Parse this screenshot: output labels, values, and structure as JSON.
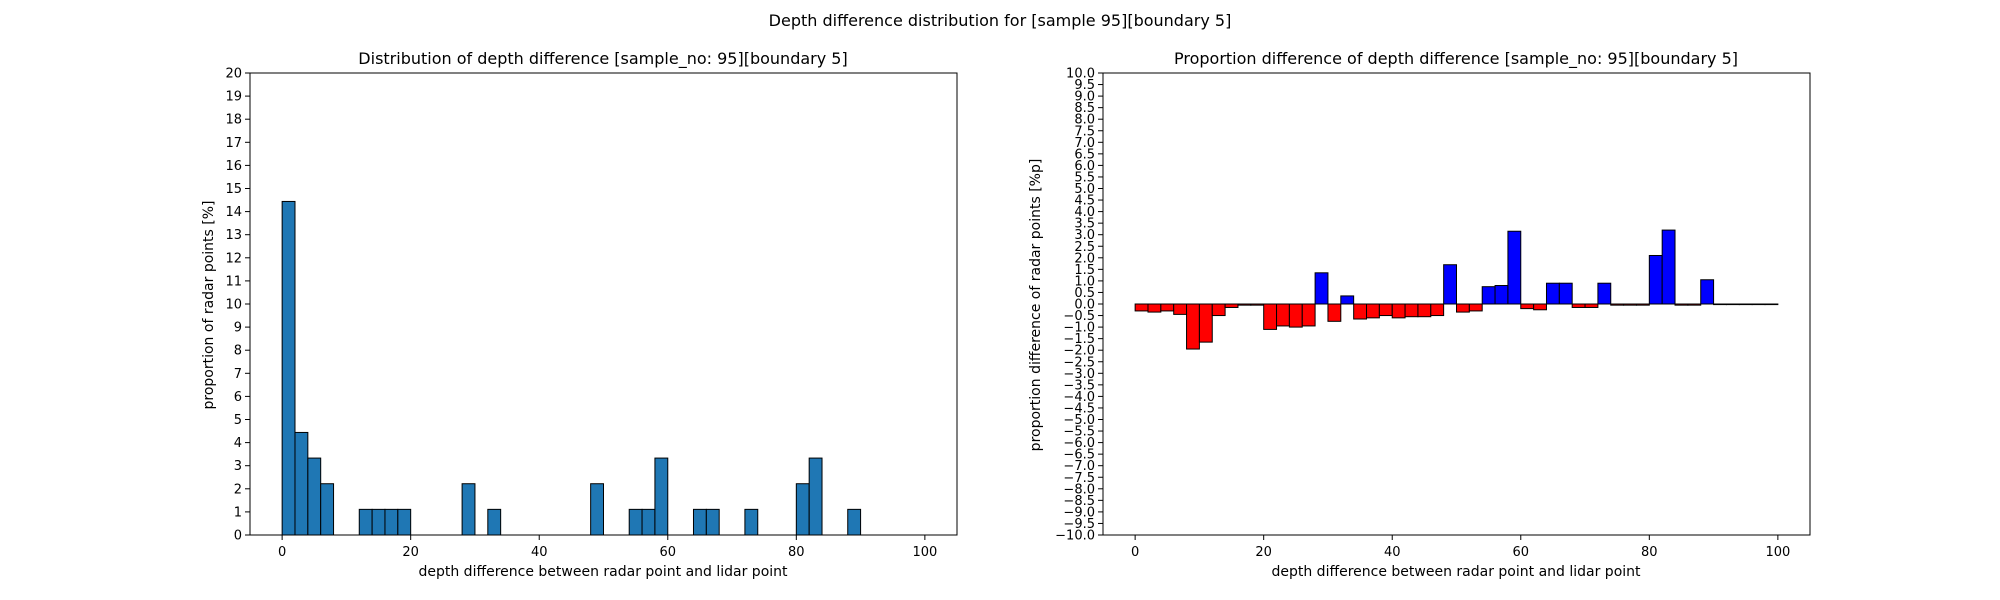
{
  "suptitle": "Depth difference distribution for [sample 95][boundary 5]",
  "chart_data": [
    {
      "type": "bar",
      "title": "Distribution of depth difference [sample_no: 95][boundary 5]",
      "xlabel": "depth difference between radar point and lidar point",
      "ylabel": "proportion of radar points [%]",
      "xlim": [
        -5,
        105
      ],
      "ylim": [
        0,
        20
      ],
      "xticks": [
        0,
        20,
        40,
        60,
        80,
        100
      ],
      "yticks": [
        0,
        1,
        2,
        3,
        4,
        5,
        6,
        7,
        8,
        9,
        10,
        11,
        12,
        13,
        14,
        15,
        16,
        17,
        18,
        19,
        20
      ],
      "bin_width": 2,
      "bar_color": "#1f77b4",
      "edge_color": "#000000",
      "bins": [
        {
          "x0": 0,
          "value": 14.44
        },
        {
          "x0": 2,
          "value": 4.44
        },
        {
          "x0": 4,
          "value": 3.33
        },
        {
          "x0": 6,
          "value": 2.22
        },
        {
          "x0": 12,
          "value": 1.11
        },
        {
          "x0": 14,
          "value": 1.11
        },
        {
          "x0": 16,
          "value": 1.11
        },
        {
          "x0": 18,
          "value": 1.11
        },
        {
          "x0": 28,
          "value": 2.22
        },
        {
          "x0": 32,
          "value": 1.11
        },
        {
          "x0": 48,
          "value": 2.22
        },
        {
          "x0": 54,
          "value": 1.11
        },
        {
          "x0": 56,
          "value": 1.11
        },
        {
          "x0": 58,
          "value": 3.33
        },
        {
          "x0": 64,
          "value": 1.11
        },
        {
          "x0": 66,
          "value": 1.11
        },
        {
          "x0": 72,
          "value": 1.11
        },
        {
          "x0": 80,
          "value": 2.22
        },
        {
          "x0": 82,
          "value": 3.33
        },
        {
          "x0": 88,
          "value": 1.11
        }
      ]
    },
    {
      "type": "bar",
      "title": "Proportion difference of depth difference [sample_no: 95][boundary 5]",
      "xlabel": "depth difference between radar point and lidar point",
      "ylabel": "proportion difference of radar points [%p]",
      "xlim": [
        -5,
        105
      ],
      "ylim": [
        -10,
        10
      ],
      "xticks": [
        0,
        20,
        40,
        60,
        80,
        100
      ],
      "yticks": [
        -10,
        -9.5,
        -9,
        -8.5,
        -8,
        -7.5,
        -7,
        -6.5,
        -6,
        -5.5,
        -5,
        -4.5,
        -4,
        -3.5,
        -3,
        -2.5,
        -2,
        -1.5,
        -1,
        -0.5,
        0,
        0.5,
        1,
        1.5,
        2,
        2.5,
        3,
        3.5,
        4,
        4.5,
        5,
        5.5,
        6,
        6.5,
        7,
        7.5,
        8,
        8.5,
        9,
        9.5,
        10
      ],
      "bin_width": 2,
      "positive_color": "#0000ff",
      "negative_color": "#ff0000",
      "edge_color": "#000000",
      "bins": [
        {
          "x0": 0,
          "value": -0.3
        },
        {
          "x0": 2,
          "value": -0.35
        },
        {
          "x0": 4,
          "value": -0.3
        },
        {
          "x0": 6,
          "value": -0.45
        },
        {
          "x0": 8,
          "value": -1.95
        },
        {
          "x0": 10,
          "value": -1.65
        },
        {
          "x0": 12,
          "value": -0.5
        },
        {
          "x0": 14,
          "value": -0.15
        },
        {
          "x0": 16,
          "value": -0.05
        },
        {
          "x0": 18,
          "value": -0.05
        },
        {
          "x0": 20,
          "value": -1.1
        },
        {
          "x0": 22,
          "value": -0.95
        },
        {
          "x0": 24,
          "value": -1.0
        },
        {
          "x0": 26,
          "value": -0.95
        },
        {
          "x0": 28,
          "value": 1.35
        },
        {
          "x0": 30,
          "value": -0.75
        },
        {
          "x0": 32,
          "value": 0.35
        },
        {
          "x0": 34,
          "value": -0.65
        },
        {
          "x0": 36,
          "value": -0.6
        },
        {
          "x0": 38,
          "value": -0.5
        },
        {
          "x0": 40,
          "value": -0.6
        },
        {
          "x0": 42,
          "value": -0.55
        },
        {
          "x0": 44,
          "value": -0.55
        },
        {
          "x0": 46,
          "value": -0.5
        },
        {
          "x0": 48,
          "value": 1.7
        },
        {
          "x0": 50,
          "value": -0.35
        },
        {
          "x0": 52,
          "value": -0.3
        },
        {
          "x0": 54,
          "value": 0.75
        },
        {
          "x0": 56,
          "value": 0.8
        },
        {
          "x0": 58,
          "value": 3.15
        },
        {
          "x0": 60,
          "value": -0.2
        },
        {
          "x0": 62,
          "value": -0.25
        },
        {
          "x0": 64,
          "value": 0.9
        },
        {
          "x0": 66,
          "value": 0.9
        },
        {
          "x0": 68,
          "value": -0.15
        },
        {
          "x0": 70,
          "value": -0.15
        },
        {
          "x0": 72,
          "value": 0.9
        },
        {
          "x0": 74,
          "value": -0.05
        },
        {
          "x0": 76,
          "value": -0.05
        },
        {
          "x0": 78,
          "value": -0.05
        },
        {
          "x0": 80,
          "value": 2.1
        },
        {
          "x0": 82,
          "value": 3.2
        },
        {
          "x0": 84,
          "value": -0.05
        },
        {
          "x0": 86,
          "value": -0.05
        },
        {
          "x0": 88,
          "value": 1.05
        },
        {
          "x0": 90,
          "value": -0.02
        },
        {
          "x0": 92,
          "value": -0.02
        },
        {
          "x0": 94,
          "value": -0.02
        },
        {
          "x0": 96,
          "value": -0.02
        },
        {
          "x0": 98,
          "value": -0.02
        }
      ]
    }
  ]
}
